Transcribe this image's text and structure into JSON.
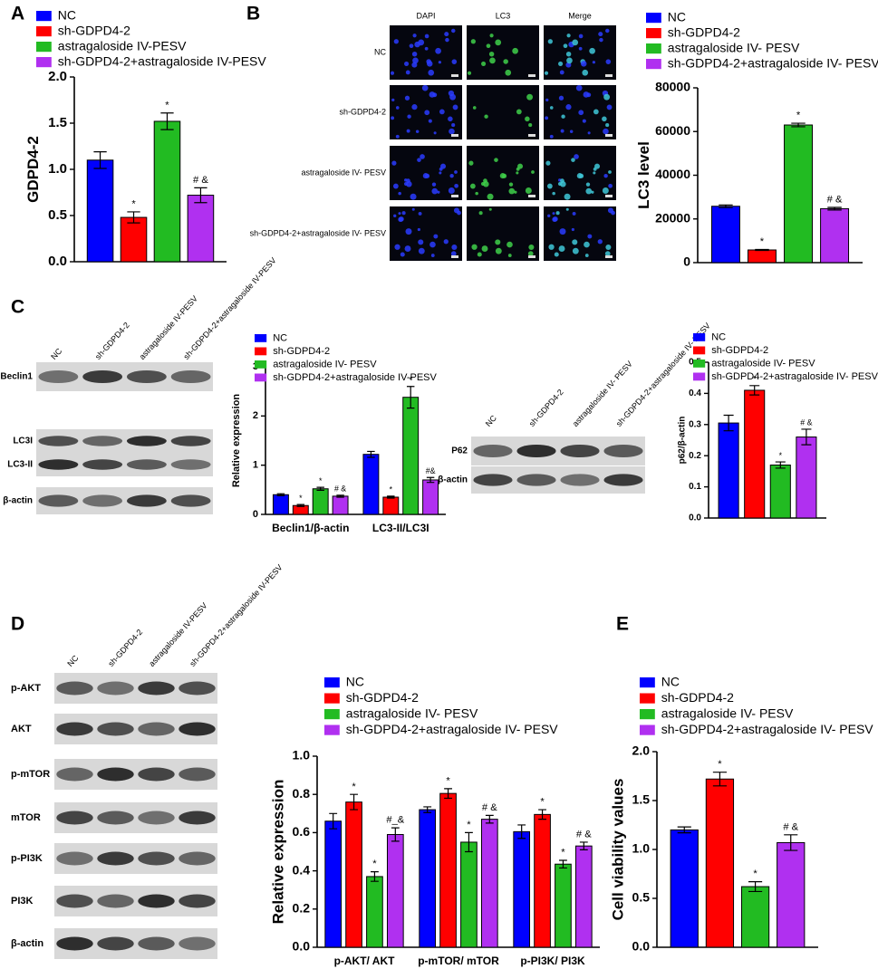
{
  "panel_labels": [
    "A",
    "B",
    "C",
    "D",
    "E"
  ],
  "micrograph": {
    "columns": [
      "DAPI",
      "LC3",
      "Merge"
    ],
    "rows": [
      "NC",
      "sh-GDPD4-2",
      "astragaloside IV- PESV",
      "sh-GDPD4-2+astragaloside IV- PESV"
    ]
  },
  "blots": [
    {
      "columns": [
        "NC",
        "sh-GDPD4-2",
        "astragaloside IV-PESV",
        "sh-GDPD4-2+astragaloside IV-PESV"
      ],
      "rows": [
        "Beclin1",
        "LC3I",
        "LC3-II",
        "β-actin"
      ]
    },
    {
      "columns": [
        "NC",
        "sh-GDPD4-2",
        "astragaloside IV- PESV",
        "sh-GDPD4-2+astragaloside IV- PESV"
      ],
      "rows": [
        "P62",
        "β-actin"
      ]
    },
    {
      "columns": [
        "NC",
        "sh-GDPD4-2",
        "astragaloside IV-PESV",
        "sh-GDPD4-2+astragaloside IV-PESV"
      ],
      "rows": [
        "p-AKT",
        "AKT",
        "p-mTOR",
        "mTOR",
        "p-PI3K",
        "PI3K",
        "β-actin"
      ]
    }
  ],
  "chart_data": [
    {
      "type": "bar",
      "y_label": "GDPD4-2",
      "ylim": [
        0,
        2
      ],
      "yticks": [
        {
          "value": 0,
          "label": "0.0"
        },
        0.5,
        {
          "value": 1,
          "label": "1.0"
        },
        1.5,
        {
          "value": 2,
          "label": "2.0"
        }
      ],
      "series": [
        {
          "name": "NC",
          "color": "#0000ff",
          "values": [
            1.1
          ],
          "errors": [
            0.09
          ],
          "sig": [
            null
          ]
        },
        {
          "name": "sh-GDPD4-2",
          "color": "#ff0000",
          "values": [
            0.48
          ],
          "errors": [
            0.06
          ],
          "sig": [
            "*"
          ]
        },
        {
          "name": "astragaloside IV-PESV",
          "color": "#22bb22",
          "values": [
            1.52
          ],
          "errors": [
            0.09
          ],
          "sig": [
            "*"
          ]
        },
        {
          "name": "sh-GDPD4-2+astragaloside IV-PESV",
          "color": "#b030f0",
          "values": [
            0.72
          ],
          "errors": [
            0.08
          ],
          "sig": [
            "# &"
          ]
        }
      ]
    },
    {
      "type": "bar",
      "y_label": "LC3 level",
      "ylim": [
        0,
        80000
      ],
      "yticks": [
        0,
        20000,
        40000,
        60000,
        80000
      ],
      "series": [
        {
          "name": "NC",
          "color": "#0000ff",
          "values": [
            25800
          ],
          "errors": [
            600
          ],
          "sig": [
            null
          ]
        },
        {
          "name": "sh-GDPD4-2",
          "color": "#ff0000",
          "values": [
            5800
          ],
          "errors": [
            200
          ],
          "sig": [
            "*"
          ]
        },
        {
          "name": "astragaloside IV- PESV",
          "color": "#22bb22",
          "values": [
            63000
          ],
          "errors": [
            800
          ],
          "sig": [
            "*"
          ]
        },
        {
          "name": "sh-GDPD4-2+astragaloside IV- PESV",
          "color": "#b030f0",
          "values": [
            24700
          ],
          "errors": [
            600
          ],
          "sig": [
            "# &"
          ]
        }
      ]
    },
    {
      "type": "bar",
      "y_label": "Relative expression",
      "categories": [
        "Beclin1/β-actin",
        "LC3-II/LC3I"
      ],
      "ylim": [
        0,
        3
      ],
      "yticks": [
        0,
        1,
        2,
        3
      ],
      "series": [
        {
          "name": "NC",
          "color": "#0000ff",
          "values": [
            0.4,
            1.22
          ],
          "errors": [
            0.02,
            0.06
          ],
          "sig": [
            null,
            null
          ]
        },
        {
          "name": "sh-GDPD4-2",
          "color": "#ff0000",
          "values": [
            0.18,
            0.35
          ],
          "errors": [
            0.02,
            0.02
          ],
          "sig": [
            "*",
            "*"
          ]
        },
        {
          "name": "astragaloside IV- PESV",
          "color": "#22bb22",
          "values": [
            0.52,
            2.38
          ],
          "errors": [
            0.03,
            0.22
          ],
          "sig": [
            "*",
            "*"
          ]
        },
        {
          "name": "sh-GDPD4-2+astragaloside IV-PESV",
          "color": "#b030f0",
          "values": [
            0.37,
            0.7
          ],
          "errors": [
            0.02,
            0.05
          ],
          "sig": [
            "# &",
            "#&"
          ]
        }
      ]
    },
    {
      "type": "bar",
      "y_label": "p62/β-actin",
      "ylim": [
        0,
        0.5
      ],
      "yticks": [
        {
          "value": 0,
          "label": "0.0"
        },
        0.1,
        0.2,
        0.3,
        0.4,
        0.5
      ],
      "series": [
        {
          "name": "NC",
          "color": "#0000ff",
          "values": [
            0.305
          ],
          "errors": [
            0.025
          ],
          "sig": [
            null
          ]
        },
        {
          "name": "sh-GDPD4-2",
          "color": "#ff0000",
          "values": [
            0.41
          ],
          "errors": [
            0.015
          ],
          "sig": [
            "*"
          ]
        },
        {
          "name": "astragaloside IV- PESV",
          "color": "#22bb22",
          "values": [
            0.17
          ],
          "errors": [
            0.01
          ],
          "sig": [
            "*"
          ]
        },
        {
          "name": "sh-GDPD4-2+astragaloside IV- PESV",
          "color": "#b030f0",
          "values": [
            0.26
          ],
          "errors": [
            0.025
          ],
          "sig": [
            "# &"
          ]
        }
      ]
    },
    {
      "type": "bar",
      "y_label": "Relative expression",
      "categories": [
        "p-AKT/ AKT",
        "p-mTOR/ mTOR",
        "p-PI3K/ PI3K"
      ],
      "ylim": [
        0,
        1
      ],
      "yticks": [
        {
          "value": 0,
          "label": "0.0"
        },
        0.2,
        0.4,
        0.6,
        0.8,
        {
          "value": 1,
          "label": "1.0"
        }
      ],
      "series": [
        {
          "name": "NC",
          "color": "#0000ff",
          "values": [
            0.66,
            0.72,
            0.605
          ],
          "errors": [
            0.04,
            0.015,
            0.035
          ],
          "sig": [
            null,
            null,
            null
          ]
        },
        {
          "name": "sh-GDPD4-2",
          "color": "#ff0000",
          "values": [
            0.76,
            0.805,
            0.695
          ],
          "errors": [
            0.04,
            0.025,
            0.025
          ],
          "sig": [
            "*",
            "*",
            "*"
          ]
        },
        {
          "name": "astragaloside IV- PESV",
          "color": "#22bb22",
          "values": [
            0.37,
            0.55,
            0.435
          ],
          "errors": [
            0.025,
            0.05,
            0.02
          ],
          "sig": [
            "*",
            "*",
            "*"
          ]
        },
        {
          "name": "sh-GDPD4-2+astragaloside IV- PESV",
          "color": "#b030f0",
          "values": [
            0.59,
            0.67,
            0.53
          ],
          "errors": [
            0.035,
            0.02,
            0.02
          ],
          "sig": [
            "#_&",
            "# &",
            "# &"
          ]
        }
      ]
    },
    {
      "type": "bar",
      "y_label": "Cell viability values",
      "ylim": [
        0,
        2
      ],
      "yticks": [
        {
          "value": 0,
          "label": "0.0"
        },
        0.5,
        {
          "value": 1,
          "label": "1.0"
        },
        1.5,
        {
          "value": 2,
          "label": "2.0"
        }
      ],
      "series": [
        {
          "name": "NC",
          "color": "#0000ff",
          "values": [
            1.2
          ],
          "errors": [
            0.03
          ],
          "sig": [
            null
          ]
        },
        {
          "name": "sh-GDPD4-2",
          "color": "#ff0000",
          "values": [
            1.72
          ],
          "errors": [
            0.07
          ],
          "sig": [
            "*"
          ]
        },
        {
          "name": "astragaloside IV- PESV",
          "color": "#22bb22",
          "values": [
            0.62
          ],
          "errors": [
            0.05
          ],
          "sig": [
            "*"
          ]
        },
        {
          "name": "sh-GDPD4-2+astragaloside IV- PESV",
          "color": "#b030f0",
          "values": [
            1.07
          ],
          "errors": [
            0.08
          ],
          "sig": [
            "# &"
          ]
        }
      ]
    }
  ]
}
